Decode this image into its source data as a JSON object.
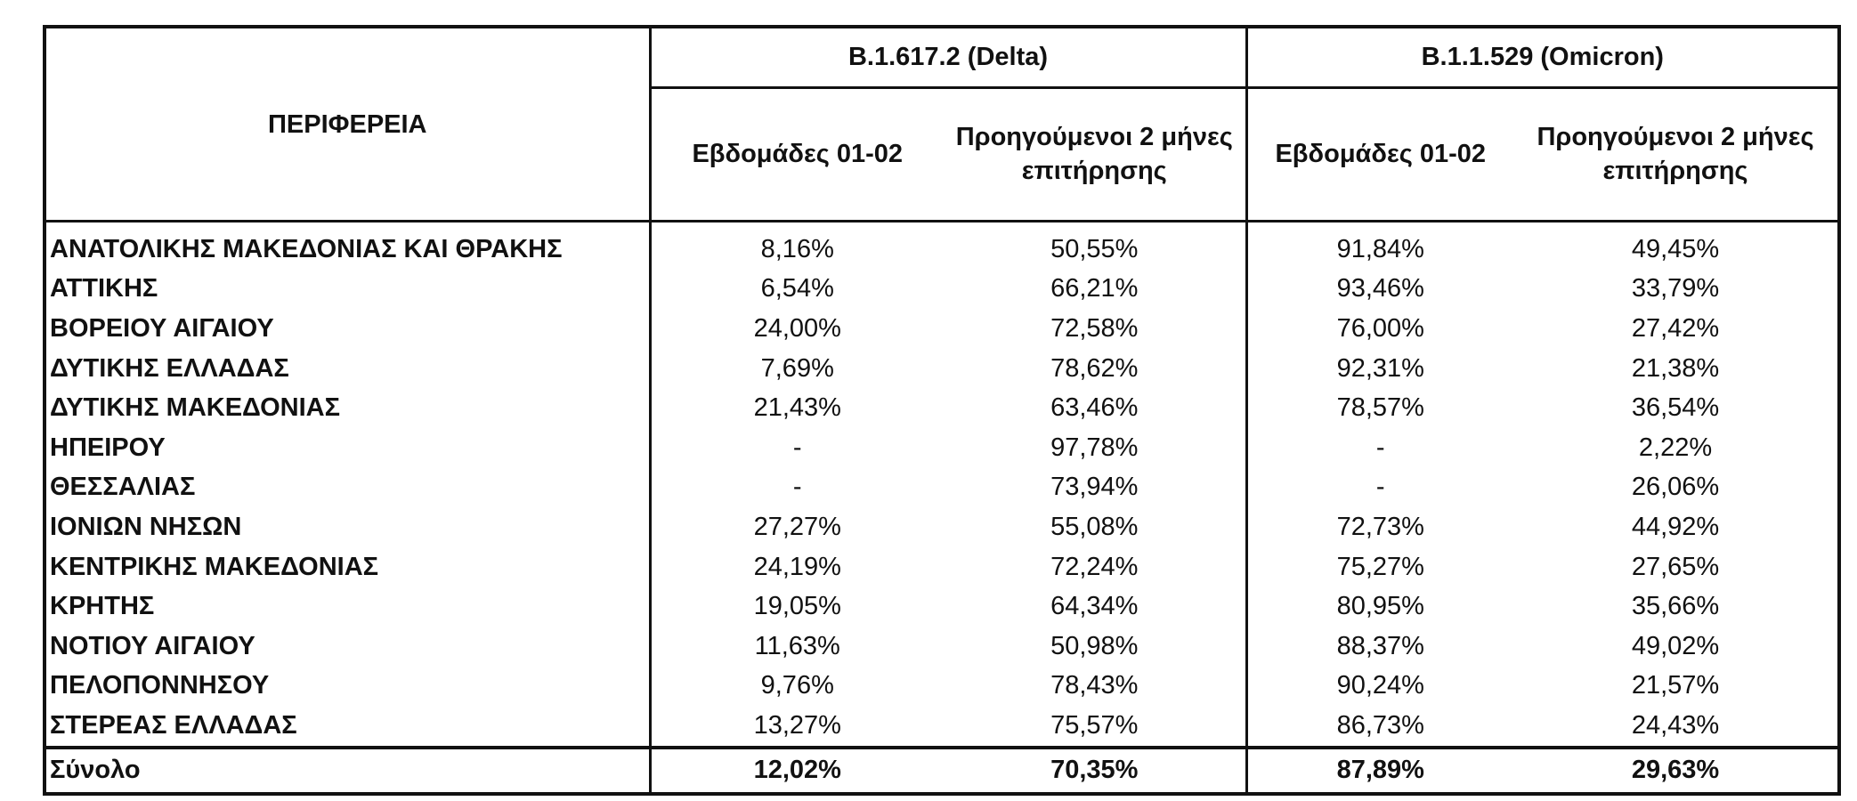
{
  "table": {
    "region_header": "ΠΕΡΙΦΕΡΕΙΑ",
    "variants": [
      {
        "label": "B.1.617.2 (Delta)"
      },
      {
        "label": "B.1.1.529 (Omicron)"
      }
    ],
    "subheaders": {
      "weeks_line1": "Εβδομάδες 01-02",
      "prev_line1": "Προηγούμενοι 2 μήνες",
      "prev_line2": "επιτήρησης"
    },
    "rows": [
      {
        "region": "ΑΝΑΤΟΛΙΚΗΣ ΜΑΚΕΔΟΝΙΑΣ ΚΑΙ ΘΡΑΚΗΣ",
        "delta_weeks": "8,16%",
        "delta_prev": "50,55%",
        "omicron_weeks": "91,84%",
        "omicron_prev": "49,45%"
      },
      {
        "region": "ΑΤΤΙΚΗΣ",
        "delta_weeks": "6,54%",
        "delta_prev": "66,21%",
        "omicron_weeks": "93,46%",
        "omicron_prev": "33,79%"
      },
      {
        "region": "ΒΟΡΕΙΟΥ ΑΙΓΑΙΟΥ",
        "delta_weeks": "24,00%",
        "delta_prev": "72,58%",
        "omicron_weeks": "76,00%",
        "omicron_prev": "27,42%"
      },
      {
        "region": "ΔΥΤΙΚΗΣ ΕΛΛΑΔΑΣ",
        "delta_weeks": "7,69%",
        "delta_prev": "78,62%",
        "omicron_weeks": "92,31%",
        "omicron_prev": "21,38%"
      },
      {
        "region": "ΔΥΤΙΚΗΣ ΜΑΚΕΔΟΝΙΑΣ",
        "delta_weeks": "21,43%",
        "delta_prev": "63,46%",
        "omicron_weeks": "78,57%",
        "omicron_prev": "36,54%"
      },
      {
        "region": "ΗΠΕΙΡΟΥ",
        "delta_weeks": "-",
        "delta_prev": "97,78%",
        "omicron_weeks": "-",
        "omicron_prev": "2,22%"
      },
      {
        "region": "ΘΕΣΣΑΛΙΑΣ",
        "delta_weeks": "-",
        "delta_prev": "73,94%",
        "omicron_weeks": "-",
        "omicron_prev": "26,06%"
      },
      {
        "region": "ΙΟΝΙΩΝ ΝΗΣΩΝ",
        "delta_weeks": "27,27%",
        "delta_prev": "55,08%",
        "omicron_weeks": "72,73%",
        "omicron_prev": "44,92%"
      },
      {
        "region": "ΚΕΝΤΡΙΚΗΣ ΜΑΚΕΔΟΝΙΑΣ",
        "delta_weeks": "24,19%",
        "delta_prev": "72,24%",
        "omicron_weeks": "75,27%",
        "omicron_prev": "27,65%"
      },
      {
        "region": "ΚΡΗΤΗΣ",
        "delta_weeks": "19,05%",
        "delta_prev": "64,34%",
        "omicron_weeks": "80,95%",
        "omicron_prev": "35,66%"
      },
      {
        "region": "ΝΟΤΙΟΥ ΑΙΓΑΙΟΥ",
        "delta_weeks": "11,63%",
        "delta_prev": "50,98%",
        "omicron_weeks": "88,37%",
        "omicron_prev": "49,02%"
      },
      {
        "region": "ΠΕΛΟΠΟΝΝΗΣΟΥ",
        "delta_weeks": "9,76%",
        "delta_prev": "78,43%",
        "omicron_weeks": "90,24%",
        "omicron_prev": "21,57%"
      },
      {
        "region": "ΣΤΕΡΕΑΣ ΕΛΛΑΔΑΣ",
        "delta_weeks": "13,27%",
        "delta_prev": "75,57%",
        "omicron_weeks": "86,73%",
        "omicron_prev": "24,43%"
      }
    ],
    "total": {
      "region": "Σύνολο",
      "delta_weeks": "12,02%",
      "delta_prev": "70,35%",
      "omicron_weeks": "87,89%",
      "omicron_prev": "29,63%"
    }
  }
}
